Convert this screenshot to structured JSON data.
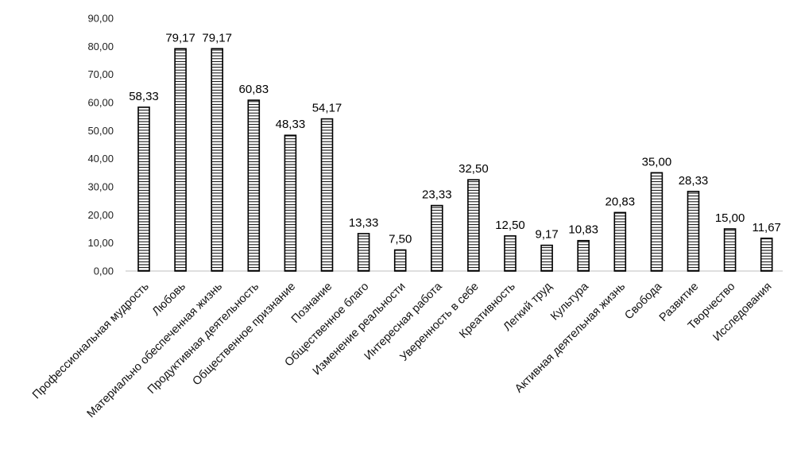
{
  "chart_data": {
    "type": "bar",
    "title": "",
    "xlabel": "",
    "ylabel": "",
    "ylim": [
      0,
      90
    ],
    "ytick_step": 10,
    "ytick_labels": [
      "0,00",
      "10,00",
      "20,00",
      "30,00",
      "40,00",
      "50,00",
      "60,00",
      "70,00",
      "80,00",
      "90,00"
    ],
    "grid": false,
    "legend": "none",
    "bar_fill": "striped-horizontal",
    "bar_color": "#000000",
    "categories": [
      "Профессиональная мудрость",
      "Любовь",
      "Материально обеспеченная жизнь",
      "Продуктивная деятельность",
      "Общественное признание",
      "Познание",
      "Общественное благо",
      "Изменение реальности",
      "Интересная работа",
      "Уверенность в себе",
      "Креативность",
      "Легкий труд",
      "Культура",
      "Активная деятельная жизнь",
      "Свобода",
      "Развитие",
      "Творчество",
      "Исследования"
    ],
    "values": [
      58.33,
      79.17,
      79.17,
      60.83,
      48.33,
      54.17,
      13.33,
      7.5,
      23.33,
      32.5,
      12.5,
      9.17,
      10.83,
      20.83,
      35.0,
      28.33,
      15.0,
      11.67
    ],
    "data_labels": [
      "58,33",
      "79,17",
      "79,17",
      "60,83",
      "48,33",
      "54,17",
      "13,33",
      "7,50",
      "23,33",
      "32,50",
      "12,50",
      "9,17",
      "10,83",
      "20,83",
      "35,00",
      "28,33",
      "15,00",
      "11,67"
    ]
  }
}
